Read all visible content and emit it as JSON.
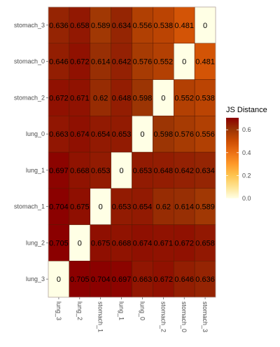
{
  "chart_data": {
    "type": "heatmap",
    "x_categories": [
      "lung_3",
      "lung_2",
      "stomach_1",
      "lung_1",
      "lung_0",
      "stomach_2",
      "stomach_0",
      "stomach_3"
    ],
    "y_categories": [
      "lung_3",
      "lung_2",
      "stomach_1",
      "lung_1",
      "lung_0",
      "stomach_2",
      "stomach_0",
      "stomach_3"
    ],
    "values": [
      [
        0,
        0.705,
        0.704,
        0.697,
        0.663,
        0.672,
        0.646,
        0.636
      ],
      [
        0.705,
        0,
        0.675,
        0.668,
        0.674,
        0.671,
        0.672,
        0.658
      ],
      [
        0.704,
        0.675,
        0,
        0.653,
        0.654,
        0.62,
        0.614,
        0.589
      ],
      [
        0.697,
        0.668,
        0.653,
        0,
        0.653,
        0.648,
        0.642,
        0.634
      ],
      [
        0.663,
        0.674,
        0.654,
        0.653,
        0,
        0.598,
        0.576,
        0.556
      ],
      [
        0.672,
        0.671,
        0.62,
        0.648,
        0.598,
        0,
        0.552,
        0.538
      ],
      [
        0.646,
        0.672,
        0.614,
        0.642,
        0.576,
        0.552,
        0,
        0.481
      ],
      [
        0.636,
        0.658,
        0.589,
        0.634,
        0.556,
        0.538,
        0.481,
        0
      ]
    ],
    "value_labels": [
      [
        "0",
        "0.705",
        "0.704",
        "0.697",
        "0.663",
        "0.672",
        "0.646",
        "0.636"
      ],
      [
        "0.705",
        "0",
        "0.675",
        "0.668",
        "0.674",
        "0.671",
        "0.672",
        "0.658"
      ],
      [
        "0.704",
        "0.675",
        "0",
        "0.653",
        "0.654",
        "0.62",
        "0.614",
        "0.589"
      ],
      [
        "0.697",
        "0.668",
        "0.653",
        "0",
        "0.653",
        "0.648",
        "0.642",
        "0.634"
      ],
      [
        "0.663",
        "0.674",
        "0.654",
        "0.653",
        "0",
        "0.598",
        "0.576",
        "0.556"
      ],
      [
        "0.672",
        "0.671",
        "0.62",
        "0.648",
        "0.598",
        "0",
        "0.552",
        "0.538"
      ],
      [
        "0.646",
        "0.672",
        "0.614",
        "0.642",
        "0.576",
        "0.552",
        "0",
        "0.481"
      ],
      [
        "0.636",
        "0.658",
        "0.589",
        "0.634",
        "0.556",
        "0.538",
        "0.481",
        "0"
      ]
    ],
    "legend": {
      "title": "JS Distance",
      "ticks": [
        "0.0",
        "0.2",
        "0.4",
        "0.6"
      ],
      "tick_values": [
        0,
        0.2,
        0.4,
        0.6
      ],
      "range": [
        0,
        0.705
      ],
      "placement": "right"
    },
    "colors": {
      "low": "#FFFFE5",
      "stops": [
        "#FFFFE5",
        "#FEE391",
        "#FEC44F",
        "#FE9929",
        "#EC7014",
        "#CC4C02",
        "#993404",
        "#8B0000"
      ],
      "cell_border": "#5a1a00"
    },
    "grid": false,
    "title": "",
    "xlabel": "",
    "ylabel": ""
  }
}
